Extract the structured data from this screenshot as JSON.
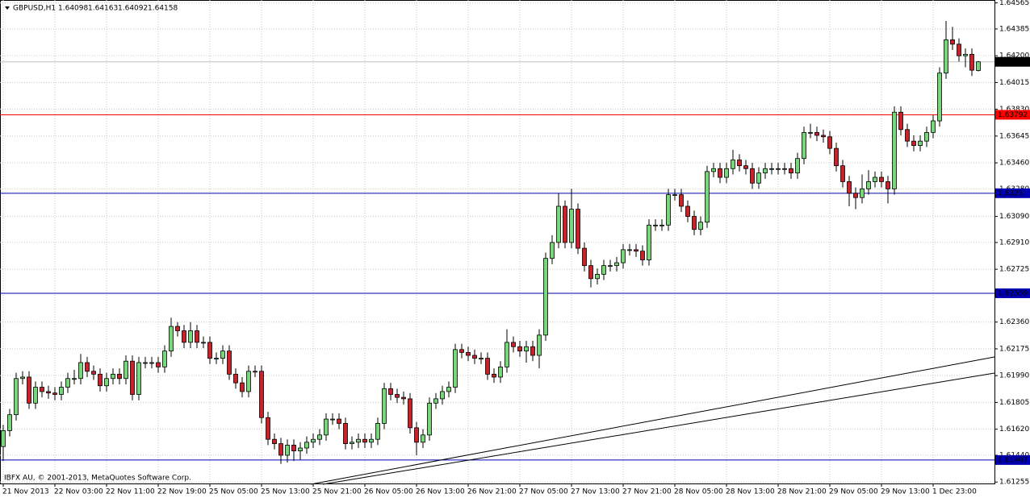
{
  "chart_data": {
    "type": "candlestick",
    "title": "GBPUSD,H1",
    "header_values": [
      1.64098,
      1.64163,
      1.64092,
      1.64158
    ],
    "copyright": "IBFX AU, © 2001-2013, MetaQuotes Software Corp.",
    "up_color": "#7ad67a",
    "down_color": "#c8232c",
    "grid": true,
    "ylim": [
      1.61245,
      1.64585
    ],
    "yticks": [
      1.64565,
      1.64385,
      {
        "value": 1.642,
        "label": "1.64200"
      },
      1.64015,
      {
        "value": 1.6383,
        "label": "1.63830"
      },
      1.63645,
      {
        "value": 1.6346,
        "label": "1.63460"
      },
      {
        "value": 1.6328,
        "label": "1.63280"
      },
      {
        "value": 1.6309,
        "label": "1.63090"
      },
      {
        "value": 1.6291,
        "label": "1.62910"
      },
      1.62725,
      {
        "value": 1.6236,
        "label": "1.62360"
      },
      1.62175,
      {
        "value": 1.6199,
        "label": "1.61990"
      },
      1.61805,
      {
        "value": 1.6162,
        "label": "1.61620"
      },
      {
        "value": 1.6144,
        "label": "1.61440"
      },
      1.61255
    ],
    "levels": [
      {
        "value": 1.63792,
        "color": "#ff0000"
      },
      {
        "value": 1.6325,
        "color": "#0000b0"
      },
      {
        "value": 1.62559,
        "color": "#0000b0"
      },
      {
        "value": 1.61407,
        "color": "#0000b0"
      }
    ],
    "current_price": 1.64158,
    "categories": [
      "21 Nov 2013",
      null,
      null,
      null,
      null,
      null,
      null,
      null,
      "22 Nov 03:00",
      null,
      null,
      null,
      null,
      null,
      null,
      null,
      "22 Nov 11:00",
      null,
      null,
      null,
      null,
      null,
      null,
      null,
      "22 Nov 19:00",
      null,
      null,
      null,
      null,
      null,
      null,
      null,
      "25 Nov 05:00",
      null,
      null,
      null,
      null,
      null,
      null,
      null,
      "25 Nov 13:00",
      null,
      null,
      null,
      null,
      null,
      null,
      null,
      "25 Nov 21:00",
      null,
      null,
      null,
      null,
      null,
      null,
      null,
      "26 Nov 05:00",
      null,
      null,
      null,
      null,
      null,
      null,
      null,
      "26 Nov 13:00",
      null,
      null,
      null,
      null,
      null,
      null,
      null,
      "26 Nov 21:00",
      null,
      null,
      null,
      null,
      null,
      null,
      null,
      "27 Nov 05:00",
      null,
      null,
      null,
      null,
      null,
      null,
      null,
      "27 Nov 13:00",
      null,
      null,
      null,
      null,
      null,
      null,
      null,
      "27 Nov 21:00",
      null,
      null,
      null,
      null,
      null,
      null,
      null,
      "28 Nov 05:00",
      null,
      null,
      null,
      null,
      null,
      null,
      null,
      "28 Nov 13:00",
      null,
      null,
      null,
      null,
      null,
      null,
      null,
      "28 Nov 21:00",
      null,
      null,
      null,
      null,
      null,
      null,
      null,
      "29 Nov 05:00",
      null,
      null,
      null,
      null,
      null,
      null,
      null,
      "29 Nov 13:00",
      null,
      null,
      null,
      null,
      null,
      null,
      null,
      "1 Dec 23:00",
      null,
      null,
      null,
      null,
      null,
      null,
      null
    ],
    "ohlc": [
      [
        1.615,
        1.6165,
        1.614,
        1.6161
      ],
      [
        1.6161,
        1.6176,
        1.6157,
        1.6172
      ],
      [
        1.6172,
        1.6201,
        1.6168,
        1.6197
      ],
      [
        1.6197,
        1.6202,
        1.6193,
        1.6198
      ],
      [
        1.6198,
        1.6202,
        1.6176,
        1.618
      ],
      [
        1.618,
        1.6195,
        1.6176,
        1.6191
      ],
      [
        1.6191,
        1.6195,
        1.6184,
        1.6188
      ],
      [
        1.6188,
        1.6192,
        1.6183,
        1.6187
      ],
      [
        1.6187,
        1.6191,
        1.6182,
        1.6186
      ],
      [
        1.6186,
        1.6195,
        1.6182,
        1.6191
      ],
      [
        1.6191,
        1.6201,
        1.6187,
        1.6197
      ],
      [
        1.6197,
        1.6203,
        1.6193,
        1.6197
      ],
      [
        1.6197,
        1.6214,
        1.6193,
        1.6208
      ],
      [
        1.6208,
        1.6212,
        1.6198,
        1.6202
      ],
      [
        1.6202,
        1.6206,
        1.6196,
        1.62
      ],
      [
        1.62,
        1.6204,
        1.6188,
        1.6192
      ],
      [
        1.6192,
        1.6201,
        1.6188,
        1.6197
      ],
      [
        1.6197,
        1.6204,
        1.6193,
        1.62
      ],
      [
        1.62,
        1.6204,
        1.6193,
        1.6197
      ],
      [
        1.6197,
        1.6213,
        1.6193,
        1.6209
      ],
      [
        1.6209,
        1.6213,
        1.6182,
        1.6186
      ],
      [
        1.6186,
        1.6212,
        1.6182,
        1.6208
      ],
      [
        1.6208,
        1.6212,
        1.6204,
        1.6208
      ],
      [
        1.6208,
        1.6212,
        1.6204,
        1.6208
      ],
      [
        1.6208,
        1.6212,
        1.6201,
        1.6205
      ],
      [
        1.6205,
        1.622,
        1.6201,
        1.6216
      ],
      [
        1.6216,
        1.6239,
        1.6212,
        1.6233
      ],
      [
        1.6233,
        1.6236,
        1.6226,
        1.623
      ],
      [
        1.623,
        1.6234,
        1.6218,
        1.6222
      ],
      [
        1.6222,
        1.6236,
        1.6218,
        1.623
      ],
      [
        1.623,
        1.6234,
        1.6218,
        1.6222
      ],
      [
        1.6222,
        1.6226,
        1.6218,
        1.6222
      ],
      [
        1.6222,
        1.6226,
        1.6207,
        1.6211
      ],
      [
        1.6211,
        1.6215,
        1.6207,
        1.6211
      ],
      [
        1.6211,
        1.622,
        1.6207,
        1.6216
      ],
      [
        1.6216,
        1.622,
        1.6196,
        1.62
      ],
      [
        1.62,
        1.6204,
        1.619,
        1.6194
      ],
      [
        1.6194,
        1.6198,
        1.6184,
        1.6188
      ],
      [
        1.6188,
        1.6206,
        1.6184,
        1.6202
      ],
      [
        1.6202,
        1.6206,
        1.6198,
        1.6202
      ],
      [
        1.6202,
        1.6206,
        1.6166,
        1.617
      ],
      [
        1.617,
        1.6174,
        1.6151,
        1.6155
      ],
      [
        1.6155,
        1.6159,
        1.6148,
        1.6152
      ],
      [
        1.6152,
        1.6156,
        1.6138,
        1.6144
      ],
      [
        1.6144,
        1.6155,
        1.6139,
        1.6151
      ],
      [
        1.6151,
        1.6155,
        1.614,
        1.6147
      ],
      [
        1.6147,
        1.6153,
        1.6141,
        1.6149
      ],
      [
        1.6149,
        1.6157,
        1.6145,
        1.6153
      ],
      [
        1.6153,
        1.6159,
        1.6149,
        1.6155
      ],
      [
        1.6155,
        1.6162,
        1.6151,
        1.6158
      ],
      [
        1.6158,
        1.6173,
        1.6154,
        1.6169
      ],
      [
        1.6169,
        1.6173,
        1.6165,
        1.6169
      ],
      [
        1.6169,
        1.6173,
        1.6162,
        1.6166
      ],
      [
        1.6166,
        1.617,
        1.6148,
        1.6152
      ],
      [
        1.6152,
        1.6157,
        1.6148,
        1.6153
      ],
      [
        1.6153,
        1.6159,
        1.6149,
        1.6155
      ],
      [
        1.6155,
        1.6159,
        1.6149,
        1.6153
      ],
      [
        1.6153,
        1.6159,
        1.6149,
        1.6155
      ],
      [
        1.6155,
        1.617,
        1.6151,
        1.6166
      ],
      [
        1.6166,
        1.6194,
        1.6162,
        1.619
      ],
      [
        1.619,
        1.6194,
        1.6182,
        1.6186
      ],
      [
        1.6186,
        1.619,
        1.618,
        1.6184
      ],
      [
        1.6184,
        1.6188,
        1.6179,
        1.6183
      ],
      [
        1.6183,
        1.6187,
        1.6159,
        1.6163
      ],
      [
        1.6163,
        1.6167,
        1.6144,
        1.6153
      ],
      [
        1.6153,
        1.6162,
        1.6149,
        1.6158
      ],
      [
        1.6158,
        1.6184,
        1.6154,
        1.618
      ],
      [
        1.618,
        1.6187,
        1.6176,
        1.6183
      ],
      [
        1.6183,
        1.6192,
        1.6179,
        1.6188
      ],
      [
        1.6188,
        1.6195,
        1.6184,
        1.6191
      ],
      [
        1.6191,
        1.6221,
        1.6187,
        1.6217
      ],
      [
        1.6217,
        1.6221,
        1.6211,
        1.6215
      ],
      [
        1.6215,
        1.6219,
        1.6209,
        1.6213
      ],
      [
        1.6213,
        1.6217,
        1.6207,
        1.6211
      ],
      [
        1.6211,
        1.6215,
        1.6207,
        1.6211
      ],
      [
        1.6211,
        1.6215,
        1.6196,
        1.62
      ],
      [
        1.62,
        1.6204,
        1.6194,
        1.6198
      ],
      [
        1.6198,
        1.6209,
        1.6194,
        1.6205
      ],
      [
        1.6205,
        1.6231,
        1.6201,
        1.6222
      ],
      [
        1.6222,
        1.6226,
        1.6215,
        1.6219
      ],
      [
        1.6219,
        1.6223,
        1.6212,
        1.6216
      ],
      [
        1.6216,
        1.6223,
        1.6208,
        1.6219
      ],
      [
        1.6219,
        1.6223,
        1.6209,
        1.6213
      ],
      [
        1.6213,
        1.6231,
        1.6204,
        1.6227
      ],
      [
        1.6227,
        1.6284,
        1.6223,
        1.628
      ],
      [
        1.628,
        1.6296,
        1.6276,
        1.6291
      ],
      [
        1.6291,
        1.6325,
        1.6287,
        1.6316
      ],
      [
        1.6316,
        1.632,
        1.6287,
        1.6291
      ],
      [
        1.6291,
        1.6328,
        1.6287,
        1.6314
      ],
      [
        1.6314,
        1.6318,
        1.6283,
        1.6287
      ],
      [
        1.6287,
        1.6291,
        1.6271,
        1.6275
      ],
      [
        1.6275,
        1.6279,
        1.626,
        1.6266
      ],
      [
        1.6266,
        1.6273,
        1.6262,
        1.6269
      ],
      [
        1.6269,
        1.6279,
        1.6265,
        1.6275
      ],
      [
        1.6275,
        1.6279,
        1.6271,
        1.6275
      ],
      [
        1.6275,
        1.6281,
        1.6271,
        1.6277
      ],
      [
        1.6277,
        1.629,
        1.6273,
        1.6286
      ],
      [
        1.6286,
        1.629,
        1.6282,
        1.6286
      ],
      [
        1.6286,
        1.629,
        1.6281,
        1.6285
      ],
      [
        1.6285,
        1.6289,
        1.6275,
        1.6279
      ],
      [
        1.6279,
        1.6307,
        1.6275,
        1.6303
      ],
      [
        1.6303,
        1.6307,
        1.6299,
        1.6303
      ],
      [
        1.6303,
        1.6307,
        1.6299,
        1.6303
      ],
      [
        1.6303,
        1.6328,
        1.6299,
        1.6324
      ],
      [
        1.6324,
        1.6328,
        1.632,
        1.6324
      ],
      [
        1.6324,
        1.6328,
        1.6312,
        1.6316
      ],
      [
        1.6316,
        1.632,
        1.6305,
        1.6309
      ],
      [
        1.6309,
        1.6313,
        1.6296,
        1.63
      ],
      [
        1.63,
        1.6309,
        1.6296,
        1.6305
      ],
      [
        1.6305,
        1.6344,
        1.6301,
        1.634
      ],
      [
        1.634,
        1.6346,
        1.6336,
        1.6342
      ],
      [
        1.6342,
        1.6346,
        1.6332,
        1.6336
      ],
      [
        1.6336,
        1.6346,
        1.6332,
        1.6342
      ],
      [
        1.6342,
        1.6355,
        1.6338,
        1.6348
      ],
      [
        1.6348,
        1.6352,
        1.634,
        1.6344
      ],
      [
        1.6344,
        1.6348,
        1.6338,
        1.6342
      ],
      [
        1.6342,
        1.6346,
        1.6328,
        1.6332
      ],
      [
        1.6332,
        1.6343,
        1.6328,
        1.6339
      ],
      [
        1.6339,
        1.6346,
        1.6335,
        1.6342
      ],
      [
        1.6342,
        1.6346,
        1.6338,
        1.6342
      ],
      [
        1.6342,
        1.6346,
        1.6338,
        1.6342
      ],
      [
        1.6342,
        1.6346,
        1.6338,
        1.6342
      ],
      [
        1.6342,
        1.6346,
        1.6335,
        1.6339
      ],
      [
        1.6339,
        1.6353,
        1.6335,
        1.6349
      ],
      [
        1.6349,
        1.6371,
        1.6345,
        1.6367
      ],
      [
        1.6367,
        1.6373,
        1.6363,
        1.6367
      ],
      [
        1.6367,
        1.6371,
        1.6361,
        1.6365
      ],
      [
        1.6365,
        1.6369,
        1.636,
        1.6364
      ],
      [
        1.6364,
        1.6368,
        1.6352,
        1.6356
      ],
      [
        1.6356,
        1.636,
        1.634,
        1.6344
      ],
      [
        1.6344,
        1.6348,
        1.6329,
        1.6333
      ],
      [
        1.6333,
        1.6337,
        1.6316,
        1.6325
      ],
      [
        1.6325,
        1.6329,
        1.6314,
        1.6322
      ],
      [
        1.6322,
        1.6338,
        1.6318,
        1.6328
      ],
      [
        1.6328,
        1.6341,
        1.6324,
        1.6333
      ],
      [
        1.6333,
        1.634,
        1.6329,
        1.6336
      ],
      [
        1.6336,
        1.634,
        1.6329,
        1.6333
      ],
      [
        1.6333,
        1.6337,
        1.6318,
        1.6328
      ],
      [
        1.6328,
        1.6385,
        1.6324,
        1.6381
      ],
      [
        1.6381,
        1.6385,
        1.6365,
        1.6369
      ],
      [
        1.6369,
        1.6373,
        1.6357,
        1.6361
      ],
      [
        1.6361,
        1.6365,
        1.6354,
        1.6358
      ],
      [
        1.6358,
        1.6365,
        1.6354,
        1.6361
      ],
      [
        1.6361,
        1.6371,
        1.6357,
        1.6367
      ],
      [
        1.6367,
        1.6379,
        1.6363,
        1.6375
      ],
      [
        1.6375,
        1.6412,
        1.6371,
        1.6408
      ],
      [
        1.6408,
        1.6444,
        1.6404,
        1.6431
      ],
      [
        1.6431,
        1.644,
        1.6424,
        1.6428
      ],
      [
        1.6428,
        1.6432,
        1.6416,
        1.642
      ],
      [
        1.642,
        1.6425,
        1.6412,
        1.6421
      ],
      [
        1.6421,
        1.6425,
        1.6406,
        1.641
      ],
      [
        1.64098,
        1.64163,
        1.64092,
        1.64158
      ]
    ]
  }
}
